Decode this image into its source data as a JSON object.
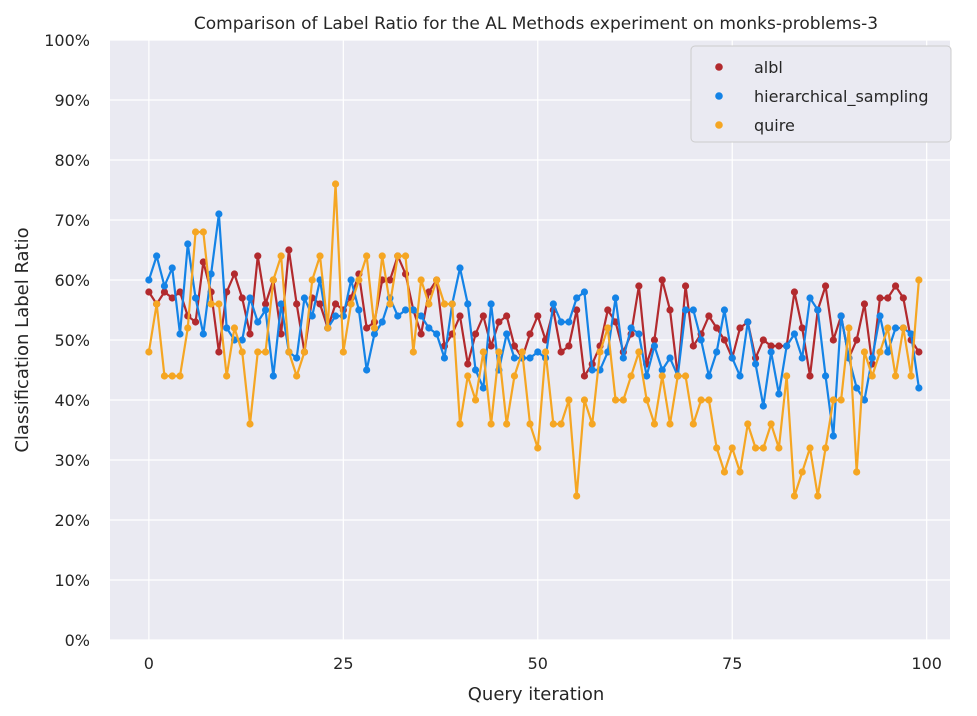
{
  "chart_data": {
    "type": "line",
    "title": "Comparison of Label Ratio for the AL Methods experiment on monks-problems-3",
    "xlabel": "Query iteration",
    "ylabel": "Classification Label Ratio",
    "xlim": [
      -5,
      103
    ],
    "ylim": [
      0,
      1
    ],
    "xticks": [
      0,
      25,
      50,
      75,
      100
    ],
    "yticks": [
      0,
      0.1,
      0.2,
      0.3,
      0.4,
      0.5,
      0.6,
      0.7,
      0.8,
      0.9,
      1.0
    ],
    "ytick_labels": [
      "0%",
      "10%",
      "20%",
      "30%",
      "40%",
      "50%",
      "60%",
      "70%",
      "80%",
      "90%",
      "100%"
    ],
    "xtick_labels": [
      "0",
      "25",
      "50",
      "75",
      "100"
    ],
    "grid": true,
    "legend_position": "top-right",
    "x": [
      0,
      1,
      2,
      3,
      4,
      5,
      6,
      7,
      8,
      9,
      10,
      11,
      12,
      13,
      14,
      15,
      16,
      17,
      18,
      19,
      20,
      21,
      22,
      23,
      24,
      25,
      26,
      27,
      28,
      29,
      30,
      31,
      32,
      33,
      34,
      35,
      36,
      37,
      38,
      39,
      40,
      41,
      42,
      43,
      44,
      45,
      46,
      47,
      48,
      49,
      50,
      51,
      52,
      53,
      54,
      55,
      56,
      57,
      58,
      59,
      60,
      61,
      62,
      63,
      64,
      65,
      66,
      67,
      68,
      69,
      70,
      71,
      72,
      73,
      74,
      75,
      76,
      77,
      78,
      79,
      80,
      81,
      82,
      83,
      84,
      85,
      86,
      87,
      88,
      89,
      90,
      91,
      92,
      93,
      94,
      95,
      96,
      97,
      98,
      99
    ],
    "series": [
      {
        "name": "albl",
        "color": "#b22a2e",
        "values": [
          0.58,
          0.56,
          0.58,
          0.57,
          0.58,
          0.54,
          0.53,
          0.63,
          0.58,
          0.48,
          0.58,
          0.61,
          0.57,
          0.51,
          0.64,
          0.56,
          0.6,
          0.51,
          0.65,
          0.56,
          0.48,
          0.57,
          0.56,
          0.52,
          0.56,
          0.55,
          0.57,
          0.61,
          0.52,
          0.53,
          0.6,
          0.6,
          0.64,
          0.61,
          0.55,
          0.51,
          0.58,
          0.6,
          0.49,
          0.51,
          0.54,
          0.46,
          0.51,
          0.54,
          0.49,
          0.53,
          0.54,
          0.49,
          0.47,
          0.51,
          0.54,
          0.5,
          0.55,
          0.48,
          0.49,
          0.55,
          0.44,
          0.46,
          0.49,
          0.55,
          0.53,
          0.48,
          0.51,
          0.59,
          0.46,
          0.5,
          0.6,
          0.55,
          0.44,
          0.59,
          0.49,
          0.51,
          0.54,
          0.52,
          0.5,
          0.47,
          0.52,
          0.53,
          0.47,
          0.5,
          0.49,
          0.49,
          0.49,
          0.58,
          0.52,
          0.44,
          0.55,
          0.59,
          0.5,
          0.54,
          0.47,
          0.5,
          0.56,
          0.46,
          0.57,
          0.57,
          0.59,
          0.57,
          0.5,
          0.48
        ]
      },
      {
        "name": "hierarchical_sampling",
        "color": "#1483e6",
        "values": [
          0.6,
          0.64,
          0.59,
          0.62,
          0.51,
          0.66,
          0.57,
          0.51,
          0.61,
          0.71,
          0.52,
          0.5,
          0.5,
          0.57,
          0.53,
          0.55,
          0.44,
          0.56,
          0.48,
          0.47,
          0.57,
          0.54,
          0.6,
          0.52,
          0.54,
          0.54,
          0.6,
          0.55,
          0.45,
          0.51,
          0.53,
          0.57,
          0.54,
          0.55,
          0.55,
          0.54,
          0.52,
          0.51,
          0.47,
          0.56,
          0.62,
          0.56,
          0.45,
          0.42,
          0.56,
          0.45,
          0.51,
          0.47,
          0.47,
          0.47,
          0.48,
          0.47,
          0.56,
          0.53,
          0.53,
          0.57,
          0.58,
          0.45,
          0.45,
          0.48,
          0.57,
          0.47,
          0.52,
          0.51,
          0.44,
          0.49,
          0.45,
          0.47,
          0.44,
          0.55,
          0.55,
          0.5,
          0.44,
          0.48,
          0.55,
          0.47,
          0.44,
          0.53,
          0.46,
          0.39,
          0.48,
          0.41,
          0.49,
          0.51,
          0.47,
          0.57,
          0.55,
          0.44,
          0.34,
          0.54,
          0.47,
          0.42,
          0.4,
          0.47,
          0.54,
          0.48,
          0.52,
          0.52,
          0.51,
          0.42
        ]
      },
      {
        "name": "quire",
        "color": "#f5a623",
        "values": [
          0.48,
          0.56,
          0.44,
          0.44,
          0.44,
          0.52,
          0.68,
          0.68,
          0.56,
          0.56,
          0.44,
          0.52,
          0.48,
          0.36,
          0.48,
          0.48,
          0.6,
          0.64,
          0.48,
          0.44,
          0.48,
          0.6,
          0.64,
          0.52,
          0.76,
          0.48,
          0.56,
          0.6,
          0.64,
          0.52,
          0.64,
          0.56,
          0.64,
          0.64,
          0.48,
          0.6,
          0.56,
          0.6,
          0.56,
          0.56,
          0.36,
          0.44,
          0.4,
          0.48,
          0.36,
          0.48,
          0.36,
          0.44,
          0.48,
          0.36,
          0.32,
          0.48,
          0.36,
          0.36,
          0.4,
          0.24,
          0.4,
          0.36,
          0.48,
          0.52,
          0.4,
          0.4,
          0.44,
          0.48,
          0.4,
          0.36,
          0.44,
          0.36,
          0.44,
          0.44,
          0.36,
          0.4,
          0.4,
          0.32,
          0.28,
          0.32,
          0.28,
          0.36,
          0.32,
          0.32,
          0.36,
          0.32,
          0.44,
          0.24,
          0.28,
          0.32,
          0.24,
          0.32,
          0.4,
          0.4,
          0.52,
          0.28,
          0.48,
          0.44,
          0.48,
          0.52,
          0.44,
          0.52,
          0.44,
          0.6
        ]
      }
    ]
  }
}
